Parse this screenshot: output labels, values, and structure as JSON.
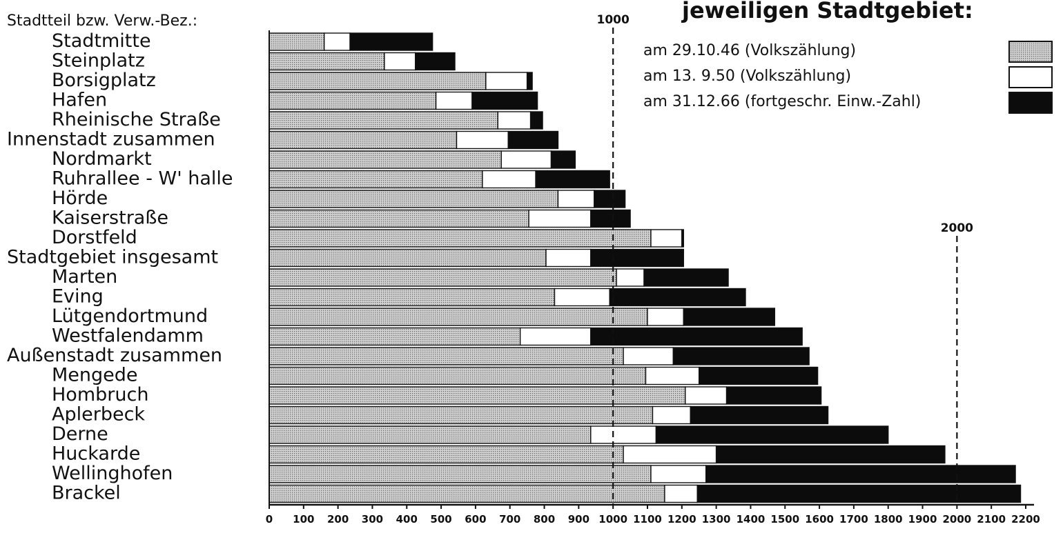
{
  "chart_data": {
    "type": "bar",
    "stacked": true,
    "orientation": "horizontal",
    "title": "jeweiligen Stadtgebiet:",
    "category_header": "Stadtteil bzw. Verw.-Bez.:",
    "categories": [
      "Stadtmitte",
      "Steinplatz",
      "Borsigplatz",
      "Hafen",
      "Rheinische Straße",
      "Innenstadt zusammen",
      "Nordmarkt",
      "Ruhrallee - W' halle",
      "Hörde",
      "Kaiserstraße",
      "Dorstfeld",
      "Stadtgebiet insgesamt",
      "Marten",
      "Eving",
      "Lütgendortmund",
      "Westfalendamm",
      "Außenstadt zusammen",
      "Mengede",
      "Hombruch",
      "Aplerbeck",
      "Derne",
      "Huckarde",
      "Wellinghofen",
      "Brackel"
    ],
    "category_indent": [
      1,
      1,
      1,
      1,
      1,
      0,
      1,
      1,
      1,
      1,
      1,
      0,
      1,
      1,
      1,
      1,
      0,
      1,
      1,
      1,
      1,
      1,
      1,
      1
    ],
    "series": [
      {
        "name": "am 29.10.46 (Volkszählung)",
        "pattern": "dotted",
        "end": [
          160,
          335,
          630,
          485,
          665,
          545,
          675,
          620,
          840,
          755,
          1110,
          805,
          1010,
          830,
          1100,
          730,
          1030,
          1095,
          1210,
          1115,
          935,
          1030,
          1110,
          1150
        ]
      },
      {
        "name": "am 13. 9.50 (Volkszählung)",
        "pattern": "white",
        "end": [
          235,
          425,
          750,
          590,
          760,
          695,
          820,
          775,
          945,
          935,
          1200,
          935,
          1090,
          990,
          1205,
          935,
          1175,
          1250,
          1330,
          1225,
          1125,
          1300,
          1270,
          1245
        ]
      },
      {
        "name": "am 31.12.66 (fortgeschr. Einw.-Zahl)",
        "pattern": "black",
        "end": [
          475,
          540,
          765,
          780,
          795,
          840,
          890,
          990,
          1035,
          1050,
          1205,
          1205,
          1335,
          1385,
          1470,
          1550,
          1570,
          1595,
          1605,
          1625,
          1800,
          1965,
          2170,
          2185
        ]
      }
    ],
    "xlim": [
      0,
      2200
    ],
    "xticks": [
      0,
      100,
      200,
      300,
      400,
      500,
      600,
      700,
      800,
      900,
      1000,
      1100,
      1200,
      1300,
      1400,
      1500,
      1600,
      1700,
      1800,
      1900,
      2000,
      2100,
      2200
    ],
    "reference_lines": [
      {
        "value": 1000,
        "label": "1000"
      },
      {
        "value": 2000,
        "label": "2000"
      }
    ],
    "legend_position": "top-right",
    "grid": false
  },
  "colors": {
    "dotted": "#b9b9b9",
    "white": "#ffffff",
    "black": "#0c0c0c",
    "stroke": "#111111"
  }
}
